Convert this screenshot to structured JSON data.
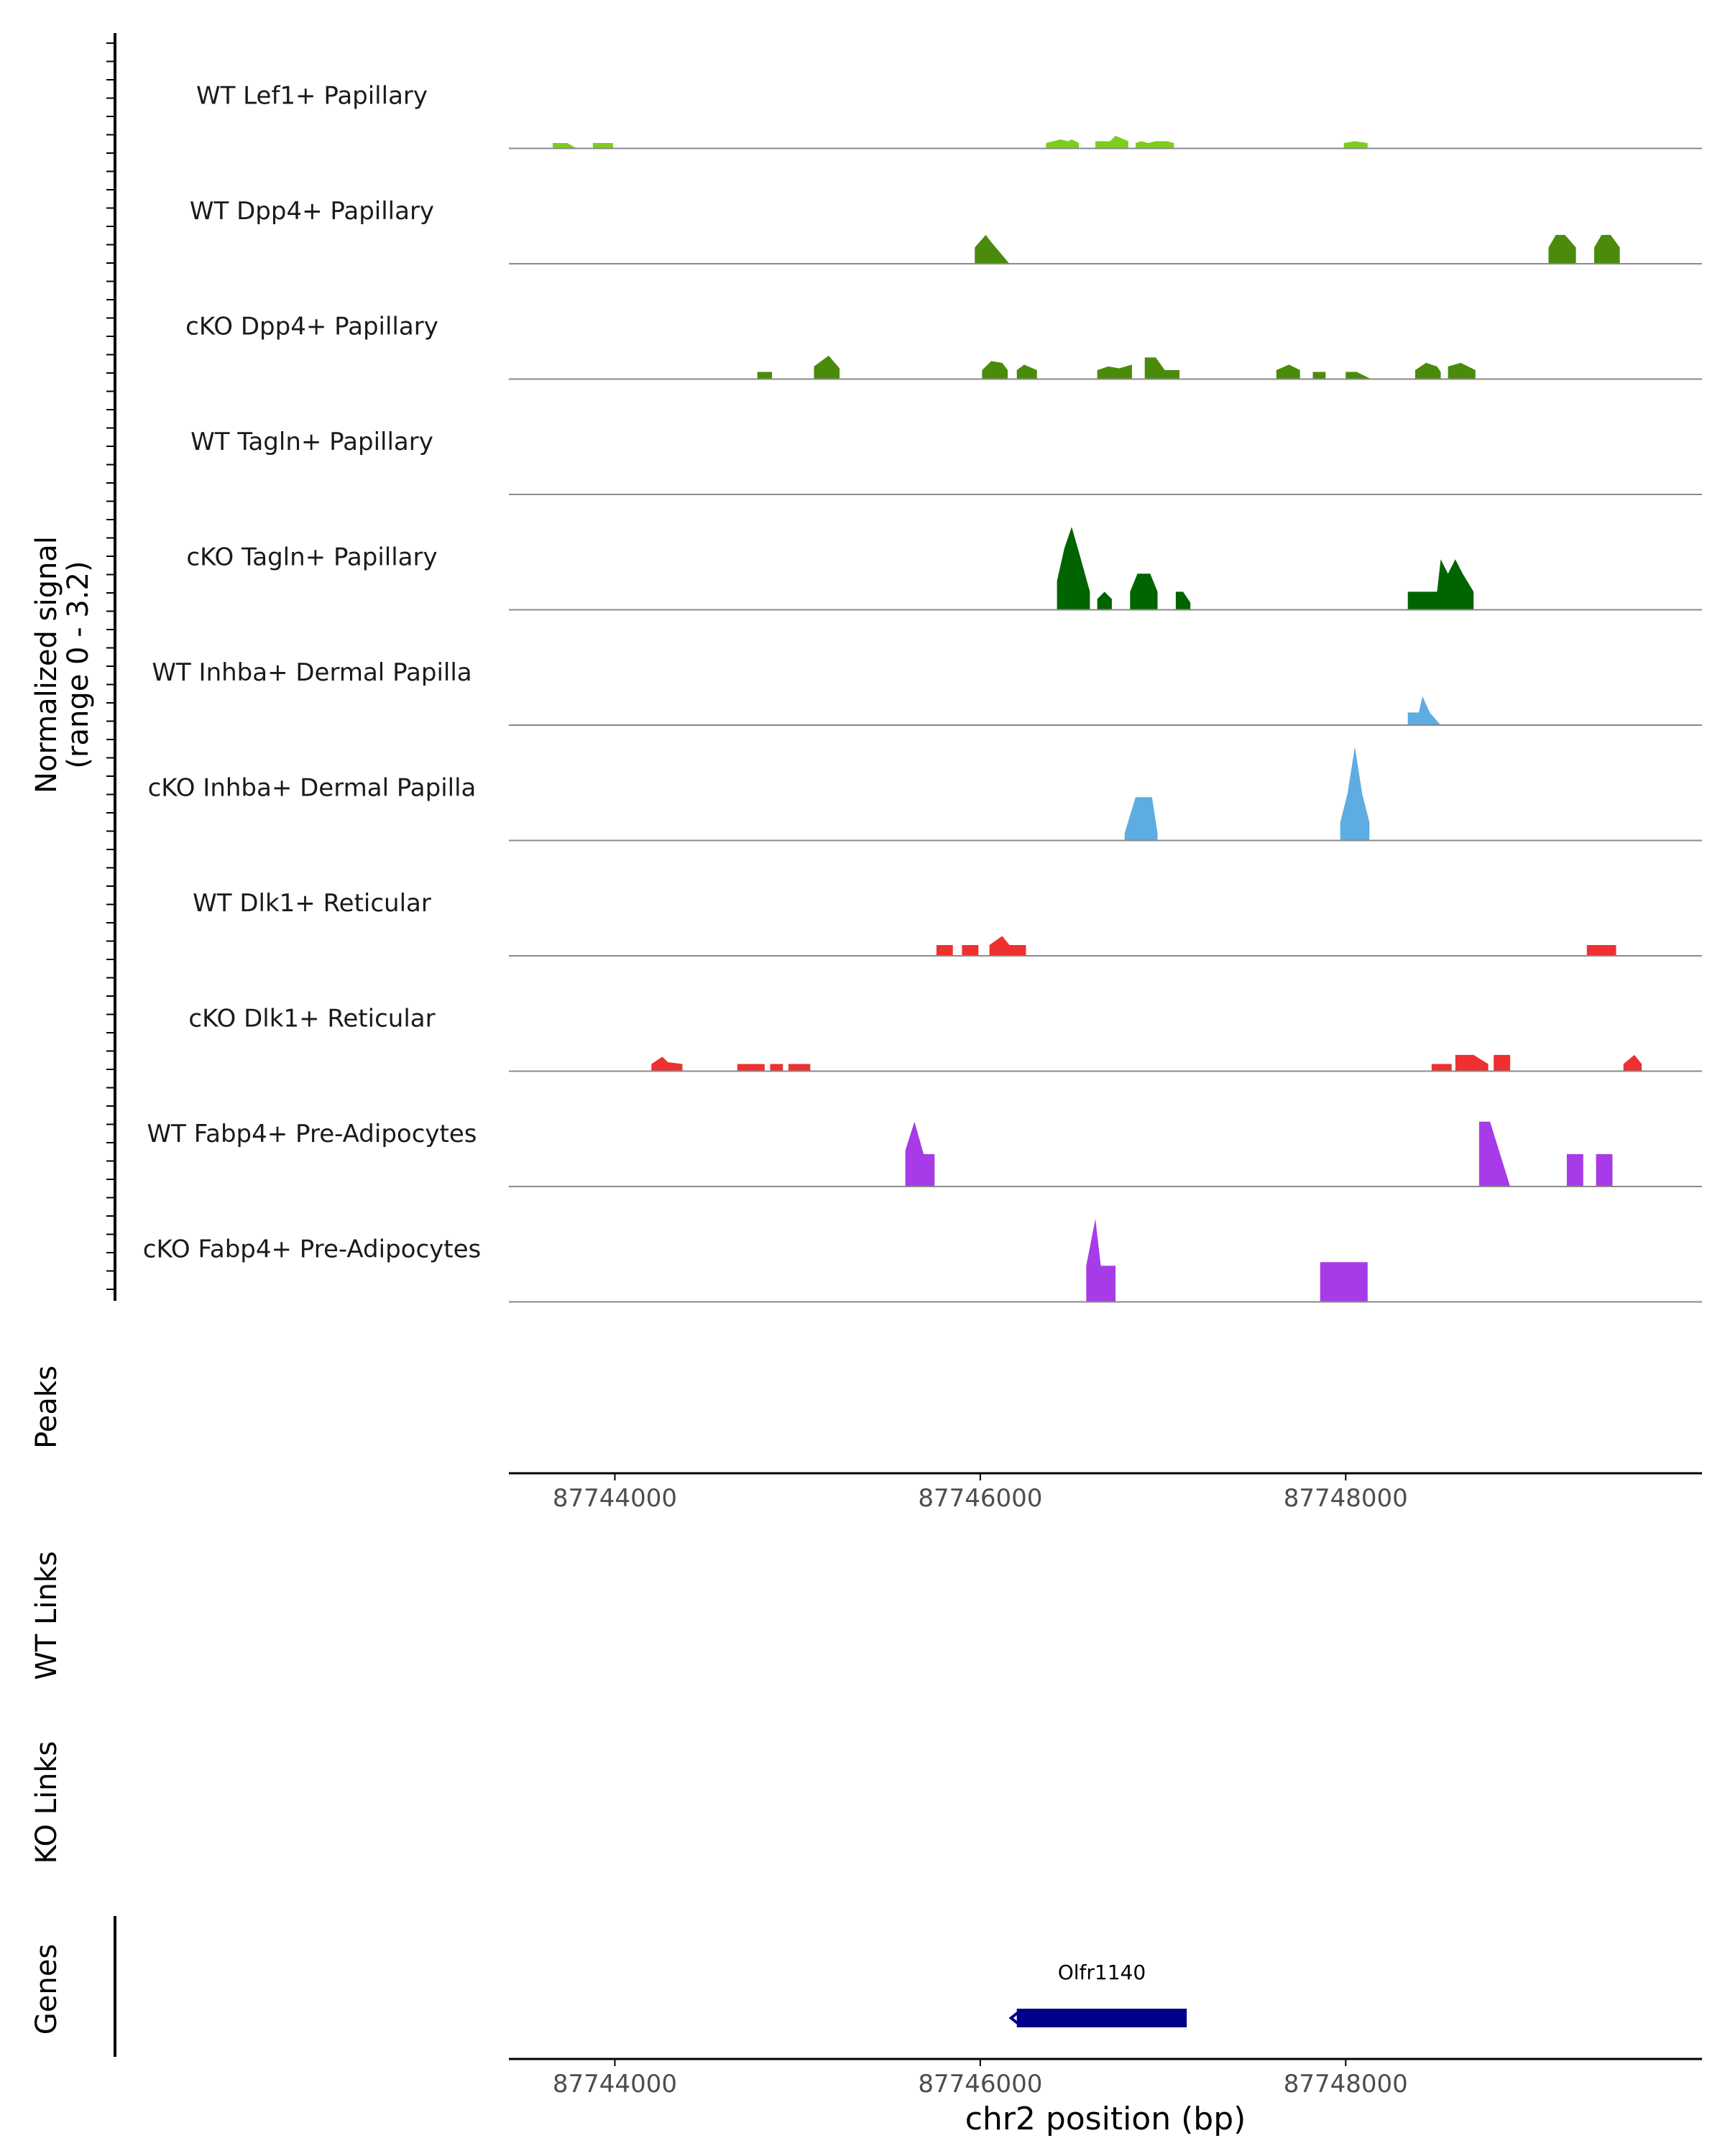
{
  "chart_data": {
    "type": "area",
    "title": "",
    "xlabel": "chr2 position (bp)",
    "ylabel_signal": "Normalized signal",
    "ylabel_signal_range": "(range 0 - 3.2)",
    "signal_range": [
      0,
      3.2
    ],
    "xlim": [
      87743420,
      87749950
    ],
    "x_ticks": [
      87744000,
      87746000,
      87748000
    ],
    "x_tick_labels": [
      "87744000",
      "87746000",
      "87748000"
    ],
    "panel_labels": {
      "peaks": "Peaks",
      "wt_links": "WT Links",
      "ko_links": "KO Links",
      "genes": "Genes"
    },
    "tracks": [
      {
        "name": "WT Lef1+ Papillary",
        "color": "#7CCD1C",
        "regions": [
          {
            "x": [
              87743660,
              87743740,
              87743790
            ],
            "y": [
              0.15,
              0.15,
              0.0
            ]
          },
          {
            "x": [
              87743880,
              87743900,
              87743990
            ],
            "y": [
              0.15,
              0.15,
              0.15
            ]
          },
          {
            "x": [
              87746360,
              87746400,
              87746440,
              87746480,
              87746500,
              87746540
            ],
            "y": [
              0.15,
              0.2,
              0.25,
              0.2,
              0.25,
              0.15
            ]
          },
          {
            "x": [
              87746630,
              87746710,
              87746740,
              87746810
            ],
            "y": [
              0.2,
              0.2,
              0.35,
              0.2
            ]
          },
          {
            "x": [
              87746850,
              87746880,
              87746920,
              87746960,
              87747020,
              87747060
            ],
            "y": [
              0.15,
              0.2,
              0.15,
              0.2,
              0.2,
              0.15
            ]
          },
          {
            "x": [
              87747990,
              87748050,
              87748120
            ],
            "y": [
              0.15,
              0.2,
              0.15
            ]
          }
        ]
      },
      {
        "name": "WT Dpp4+ Papillary",
        "color": "#4B8B0B",
        "regions": [
          {
            "x": [
              87745970,
              87746030,
              87746060,
              87746160
            ],
            "y": [
              0.45,
              0.8,
              0.6,
              0.0
            ]
          },
          {
            "x": [
              87749110,
              87749150,
              87749200,
              87749260
            ],
            "y": [
              0.45,
              0.8,
              0.8,
              0.45
            ]
          },
          {
            "x": [
              87749360,
              87749400,
              87749450,
              87749500
            ],
            "y": [
              0.45,
              0.8,
              0.8,
              0.45
            ]
          }
        ]
      },
      {
        "name": "cKO Dpp4+ Papillary",
        "color": "#4B8B0B",
        "regions": [
          {
            "x": [
              87744780,
              87744860
            ],
            "y": [
              0.2,
              0.2
            ]
          },
          {
            "x": [
              87745090,
              87745130,
              87745170,
              87745230
            ],
            "y": [
              0.35,
              0.5,
              0.65,
              0.3
            ]
          },
          {
            "x": [
              87746010,
              87746060,
              87746120,
              87746150
            ],
            "y": [
              0.25,
              0.5,
              0.45,
              0.25
            ]
          },
          {
            "x": [
              87746200,
              87746240,
              87746310
            ],
            "y": [
              0.25,
              0.4,
              0.25
            ]
          },
          {
            "x": [
              87746640,
              87746700,
              87746760,
              87746830
            ],
            "y": [
              0.25,
              0.35,
              0.3,
              0.4
            ]
          },
          {
            "x": [
              87746900,
              87746960,
              87747010,
              87747090
            ],
            "y": [
              0.6,
              0.6,
              0.25,
              0.25
            ]
          },
          {
            "x": [
              87747620,
              87747690,
              87747750
            ],
            "y": [
              0.25,
              0.4,
              0.25
            ]
          },
          {
            "x": [
              87747820,
              87747890
            ],
            "y": [
              0.2,
              0.2
            ]
          },
          {
            "x": [
              87748000,
              87748060,
              87748140
            ],
            "y": [
              0.2,
              0.2,
              0.0
            ]
          },
          {
            "x": [
              87748380,
              87748440,
              87748500,
              87748520
            ],
            "y": [
              0.25,
              0.45,
              0.35,
              0.2
            ]
          },
          {
            "x": [
              87748560,
              87748630,
              87748710
            ],
            "y": [
              0.35,
              0.45,
              0.25
            ]
          }
        ]
      },
      {
        "name": "WT Tagln+ Papillary",
        "color": "#006400",
        "regions": []
      },
      {
        "name": "cKO Tagln+ Papillary",
        "color": "#006400",
        "regions": [
          {
            "x": [
              87746420,
              87746460,
              87746500,
              87746540,
              87746600
            ],
            "y": [
              0.8,
              1.7,
              2.3,
              1.6,
              0.5
            ]
          },
          {
            "x": [
              87746640,
              87746680,
              87746720
            ],
            "y": [
              0.3,
              0.5,
              0.3
            ]
          },
          {
            "x": [
              87746820,
              87746860,
              87746930,
              87746970
            ],
            "y": [
              0.5,
              1.0,
              1.0,
              0.5
            ]
          },
          {
            "x": [
              87747070,
              87747110,
              87747150
            ],
            "y": [
              0.5,
              0.5,
              0.2
            ]
          },
          {
            "x": [
              87748340,
              87748500,
              87748520,
              87748560,
              87748600,
              87748640,
              87748700
            ],
            "y": [
              0.5,
              0.5,
              1.4,
              1.0,
              1.4,
              1.0,
              0.5
            ]
          }
        ]
      },
      {
        "name": "WT Inhba+ Dermal Papilla",
        "color": "#5DADE2",
        "regions": [
          {
            "x": [
              87748340,
              87748400,
              87748420,
              87748460,
              87748520
            ],
            "y": [
              0.35,
              0.35,
              0.8,
              0.35,
              0.0
            ]
          }
        ]
      },
      {
        "name": "cKO Inhba+ Dermal Papilla",
        "color": "#5DADE2",
        "regions": [
          {
            "x": [
              87746790,
              87746850,
              87746940,
              87746970
            ],
            "y": [
              0.2,
              1.2,
              1.2,
              0.2
            ]
          },
          {
            "x": [
              87747970,
              87748010,
              87748050,
              87748090,
              87748130
            ],
            "y": [
              0.5,
              1.3,
              2.6,
              1.3,
              0.5
            ]
          }
        ]
      },
      {
        "name": "WT Dlk1+ Reticular",
        "color": "#EE3030",
        "regions": [
          {
            "x": [
              87745760,
              87745850
            ],
            "y": [
              0.3,
              0.3
            ]
          },
          {
            "x": [
              87745900,
              87745990
            ],
            "y": [
              0.3,
              0.3
            ]
          },
          {
            "x": [
              87746050,
              87746120,
              87746160,
              87746250
            ],
            "y": [
              0.3,
              0.55,
              0.3,
              0.3
            ]
          },
          {
            "x": [
              87749320,
              87749480
            ],
            "y": [
              0.3,
              0.3
            ]
          }
        ]
      },
      {
        "name": "cKO Dlk1+ Reticular",
        "color": "#EE3030",
        "regions": [
          {
            "x": [
              87744200,
              87744260,
              87744290,
              87744370
            ],
            "y": [
              0.2,
              0.4,
              0.25,
              0.2
            ]
          },
          {
            "x": [
              87744670,
              87744820
            ],
            "y": [
              0.2,
              0.2
            ]
          },
          {
            "x": [
              87744850,
              87744920
            ],
            "y": [
              0.2,
              0.2
            ]
          },
          {
            "x": [
              87744950,
              87745070
            ],
            "y": [
              0.2,
              0.2
            ]
          },
          {
            "x": [
              87748470,
              87748580
            ],
            "y": [
              0.2,
              0.2
            ]
          },
          {
            "x": [
              87748600,
              87748700,
              87748780
            ],
            "y": [
              0.45,
              0.45,
              0.2
            ]
          },
          {
            "x": [
              87748810,
              87748900
            ],
            "y": [
              0.45,
              0.45
            ]
          },
          {
            "x": [
              87749520,
              87749580,
              87749620
            ],
            "y": [
              0.2,
              0.45,
              0.2
            ]
          }
        ]
      },
      {
        "name": "WT Fabp4+ Pre-Adipocytes",
        "color": "#A83BE8",
        "regions": [
          {
            "x": [
              87745590,
              87745640,
              87745690,
              87745750
            ],
            "y": [
              1.0,
              1.8,
              0.9,
              0.9
            ]
          },
          {
            "x": [
              87748730,
              87748790,
              87748900
            ],
            "y": [
              1.8,
              1.8,
              0.0
            ]
          },
          {
            "x": [
              87749210,
              87749300
            ],
            "y": [
              0.9,
              0.9
            ]
          },
          {
            "x": [
              87749370,
              87749460
            ],
            "y": [
              0.9,
              0.9
            ]
          }
        ]
      },
      {
        "name": "cKO Fabp4+ Pre-Adipocytes",
        "color": "#A83BE8",
        "regions": [
          {
            "x": [
              87746580,
              87746630,
              87746660,
              87746740
            ],
            "y": [
              1.0,
              2.3,
              1.0,
              1.0
            ]
          },
          {
            "x": [
              87747860,
              87747920,
              87748060,
              87748120
            ],
            "y": [
              1.1,
              1.1,
              1.1,
              1.1
            ]
          }
        ]
      }
    ],
    "genes": [
      {
        "name": "Olfr1140",
        "start": 87746200,
        "end": 87747130,
        "strand": "-",
        "color": "#00008B"
      }
    ]
  }
}
